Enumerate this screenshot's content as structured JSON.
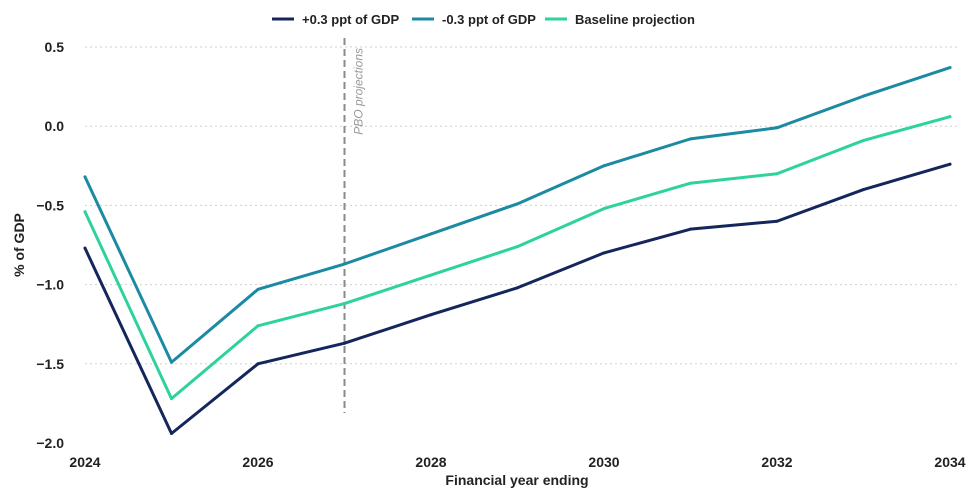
{
  "chart_data": {
    "type": "line",
    "title": "",
    "xlabel": "Financial year ending",
    "ylabel": "% of GDP",
    "x": [
      2024,
      2025,
      2026,
      2027,
      2028,
      2029,
      2030,
      2031,
      2032,
      2033,
      2034
    ],
    "xlim": [
      2024,
      2034
    ],
    "ylim": [
      -2.0,
      0.5
    ],
    "x_ticks": [
      "2024",
      "2026",
      "2028",
      "2030",
      "2032",
      "2034"
    ],
    "y_ticks": [
      "0.5",
      "0.0",
      "-0.5",
      "-1.0",
      "-1.5",
      "-2.0"
    ],
    "grid": true,
    "legend_position": "top",
    "series": [
      {
        "name": "+0.3 ppt of GDP",
        "color": "#14265c",
        "values": [
          -0.77,
          -1.94,
          -1.5,
          -1.37,
          -1.19,
          -1.02,
          -0.8,
          -0.65,
          -0.6,
          -0.4,
          -0.24
        ]
      },
      {
        "name": "-0.3 ppt of GDP",
        "color": "#1b8aa2",
        "values": [
          -0.32,
          -1.49,
          -1.03,
          -0.87,
          -0.68,
          -0.49,
          -0.25,
          -0.08,
          -0.01,
          0.19,
          0.37
        ]
      },
      {
        "name": "Baseline projection",
        "color": "#2ed39a",
        "values": [
          -0.54,
          -1.72,
          -1.26,
          -1.12,
          -0.94,
          -0.76,
          -0.52,
          -0.36,
          -0.3,
          -0.09,
          0.06
        ]
      }
    ],
    "annotations": [
      {
        "text": "PBO projections",
        "x": 2027,
        "style": "dashed-vertical"
      }
    ]
  }
}
